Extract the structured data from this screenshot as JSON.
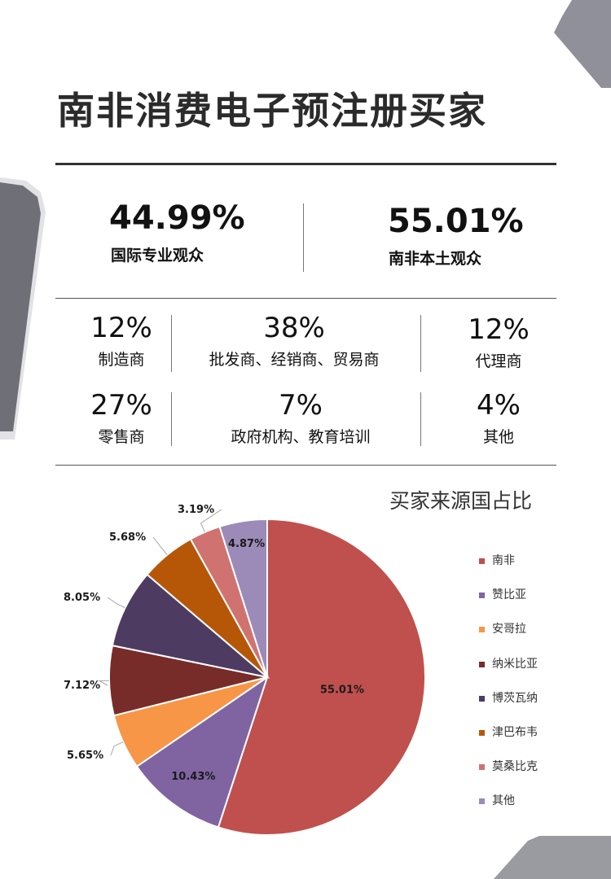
{
  "title": "南非消费电子预注册买家",
  "audience": [
    {
      "percent": "44.99%",
      "label": "国际专业观众"
    },
    {
      "percent": "55.01%",
      "label": "南非本土观众"
    }
  ],
  "categories": [
    {
      "percent": "12%",
      "label": "制造商"
    },
    {
      "percent": "38%",
      "label": "批发商、经销商、贸易商"
    },
    {
      "percent": "12%",
      "label": "代理商"
    },
    {
      "percent": "27%",
      "label": "零售商"
    },
    {
      "percent": "7%",
      "label": "政府机构、教育培训"
    },
    {
      "percent": "4%",
      "label": "其他"
    }
  ],
  "chart_data": {
    "type": "pie",
    "title": "买家来源国占比",
    "categories": [
      "南非",
      "赞比亚",
      "安哥拉",
      "纳米比亚",
      "博茨瓦纳",
      "津巴布韦",
      "莫桑比克",
      "其他"
    ],
    "values": [
      55.01,
      10.43,
      5.65,
      7.12,
      8.05,
      5.68,
      3.19,
      4.87
    ],
    "data_labels": [
      "55.01%",
      "10.43%",
      "5.65%",
      "7.12%",
      "8.05%",
      "5.68%",
      "3.19%",
      "4.87%"
    ],
    "colors": [
      "#c0504d",
      "#8064a2",
      "#f79646",
      "#772c2a",
      "#4d3b62",
      "#b65708",
      "#d07370",
      "#9c8ab8"
    ],
    "legend_position": "right"
  }
}
